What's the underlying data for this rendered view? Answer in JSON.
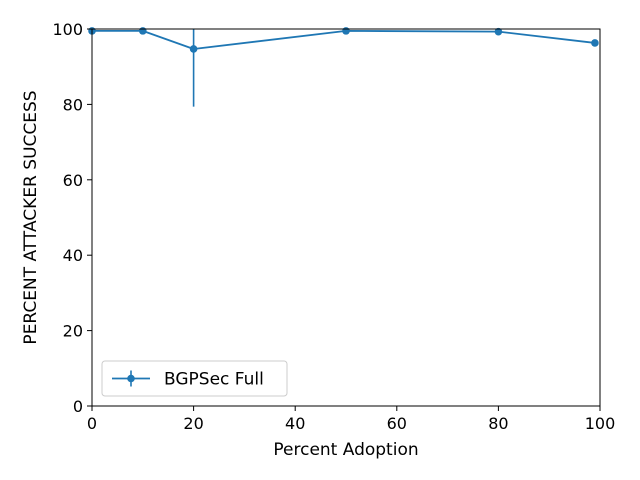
{
  "chart_data": {
    "type": "line",
    "title": "",
    "xlabel": "Percent Adoption",
    "ylabel": "PERCENT ATTACKER SUCCESS",
    "xlim": [
      0,
      100
    ],
    "ylim": [
      0,
      100
    ],
    "xticks": [
      0,
      20,
      40,
      60,
      80,
      100
    ],
    "yticks": [
      0,
      20,
      40,
      60,
      80,
      100
    ],
    "grid": false,
    "legend_position": "lower-left",
    "series": [
      {
        "name": "BGPSec Full",
        "color": "#1f77b4",
        "marker": "circle",
        "x": [
          0,
          10,
          20,
          50,
          80,
          99
        ],
        "y": [
          99.5,
          99.5,
          94.7,
          99.5,
          99.3,
          96.3
        ],
        "yerr_low": [
          0,
          0,
          15.3,
          0,
          0,
          0
        ],
        "yerr_high": [
          0.5,
          0.5,
          5.3,
          0.5,
          0.7,
          0.5
        ]
      }
    ]
  }
}
